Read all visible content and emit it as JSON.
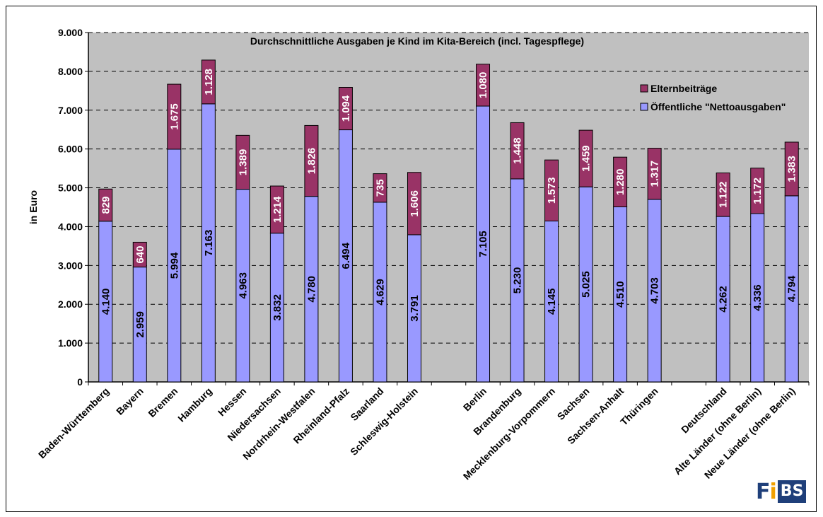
{
  "chart_data": {
    "type": "bar",
    "stacked": true,
    "title": "Durchschnittliche Ausgaben je Kind im Kita-Bereich (incl. Tagespflege)",
    "ylabel": "in Euro",
    "ylim": [
      0,
      9000
    ],
    "yticks": [
      "0",
      "1.000",
      "2.000",
      "3.000",
      "4.000",
      "5.000",
      "6.000",
      "7.000",
      "8.000",
      "9.000"
    ],
    "grid": true,
    "legend_position": "top-right",
    "categories": [
      "Baden-Württemberg",
      "Bayern",
      "Bremen",
      "Hamburg",
      "Hessen",
      "Niedersachsen",
      "Nordrhein-Westfalen",
      "Rheinland-Pfalz",
      "Saarland",
      "Schleswig-Holstein",
      "",
      "Berlin",
      "Brandenburg",
      "Mecklenburg-Vorpommern",
      "Sachsen",
      "Sachsen-Anhalt",
      "Thüringen",
      "",
      "Deutschland",
      "Alte Länder (ohne Berlin)",
      "Neue Länder (ohne Berlin)"
    ],
    "series": [
      {
        "name": "Öffentliche \"Nettoausgaben\"",
        "color": "#9999ff",
        "values": [
          4140,
          2959,
          5994,
          7163,
          4963,
          3832,
          4780,
          6494,
          4629,
          3791,
          null,
          7105,
          5230,
          4145,
          5025,
          4510,
          4703,
          null,
          4262,
          4336,
          4794
        ],
        "labels": [
          "4.140",
          "2.959",
          "5.994",
          "7.163",
          "4.963",
          "3.832",
          "4.780",
          "6.494",
          "4.629",
          "3.791",
          "",
          "7.105",
          "5.230",
          "4.145",
          "5.025",
          "4.510",
          "4.703",
          "",
          "4.262",
          "4.336",
          "4.794"
        ]
      },
      {
        "name": "Elternbeiträge",
        "color": "#993366",
        "values": [
          829,
          640,
          1675,
          1128,
          1389,
          1214,
          1826,
          1094,
          735,
          1606,
          null,
          1080,
          1448,
          1573,
          1459,
          1280,
          1317,
          null,
          1122,
          1172,
          1383
        ],
        "labels": [
          "829",
          "640",
          "1.675",
          "1.128",
          "1.389",
          "1.214",
          "1.826",
          "1.094",
          "735",
          "1.606",
          "",
          "1.080",
          "1.448",
          "1.573",
          "1.459",
          "1.280",
          "1.317",
          "",
          "1.122",
          "1.172",
          "1.383"
        ]
      }
    ]
  },
  "colors": {
    "plot_background": "#c0c0c0",
    "bar_bottom": "#9999ff",
    "bar_top": "#993366"
  },
  "logo": {
    "text_a": "F",
    "text_b": "i",
    "text_c": "BS"
  }
}
